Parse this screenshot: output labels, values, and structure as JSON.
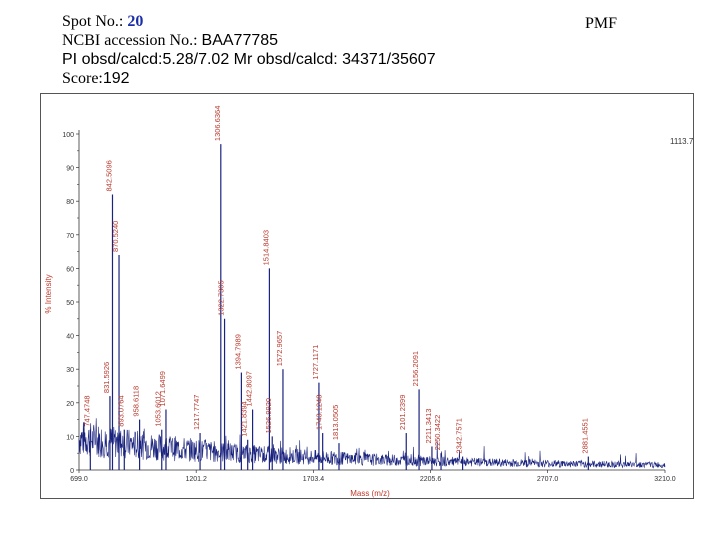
{
  "header": {
    "spot_label": "Spot No.: ",
    "spot_value": "20",
    "ncbi_label": "NCBI accession No.: ",
    "ncbi_value": "BAA77785",
    "pi_line": "PI obsd/calcd:5.28/7.02   Mr obsd/calcd: 34371/35607",
    "score_label": "Score:",
    "score_value": "192",
    "pmf": "PMF"
  },
  "chart_data": {
    "type": "line",
    "title": "",
    "xlabel": "Mass (m/z)",
    "ylabel": "% Intensity",
    "xlim": [
      699.0,
      3210.0
    ],
    "ylim": [
      0,
      100
    ],
    "x_ticks": [
      "699.0",
      "1201.2",
      "1703.4",
      "2205.6",
      "2707.0",
      "3210.0"
    ],
    "y_ticks": [
      "0",
      "10",
      "20",
      "30",
      "40",
      "50",
      "60",
      "70",
      "80",
      "90",
      "100"
    ],
    "max_intensity_label": "1113.7",
    "colors": {
      "trace": "#1a237e",
      "peak_label": "#b83a2e",
      "axis_title": "#c0392b"
    },
    "peaks": [
      {
        "mz": 747.4748,
        "intensity": 12,
        "label": "747.4748"
      },
      {
        "mz": 831.5926,
        "intensity": 22,
        "label": "831.5926"
      },
      {
        "mz": 842.5096,
        "intensity": 82,
        "label": "842.5096"
      },
      {
        "mz": 870.524,
        "intensity": 64,
        "label": "870.5240"
      },
      {
        "mz": 893.0764,
        "intensity": 12,
        "label": "893.0764"
      },
      {
        "mz": 958.6118,
        "intensity": 15,
        "label": "958.6118"
      },
      {
        "mz": 1053.6012,
        "intensity": 12,
        "label": "1053.6012"
      },
      {
        "mz": 1071.6499,
        "intensity": 18,
        "label": "1071.6499"
      },
      {
        "mz": 1217.7747,
        "intensity": 11,
        "label": "1217.7747"
      },
      {
        "mz": 1306.6364,
        "intensity": 97,
        "label": "1306.6364"
      },
      {
        "mz": 1322.7305,
        "intensity": 45,
        "label": "1322.7305"
      },
      {
        "mz": 1394.7989,
        "intensity": 29,
        "label": "1394.7989"
      },
      {
        "mz": 1421.8394,
        "intensity": 9,
        "label": "1421.8394"
      },
      {
        "mz": 1442.8097,
        "intensity": 18,
        "label": "1442.8097"
      },
      {
        "mz": 1514.8403,
        "intensity": 60,
        "label": "1514.8403"
      },
      {
        "mz": 1526.992,
        "intensity": 10,
        "label": "1526.9920"
      },
      {
        "mz": 1572.9657,
        "intensity": 30,
        "label": "1572.9657"
      },
      {
        "mz": 1727.1171,
        "intensity": 26,
        "label": "1727.1171"
      },
      {
        "mz": 1743.1248,
        "intensity": 11,
        "label": "1743.1248"
      },
      {
        "mz": 1813.0505,
        "intensity": 8,
        "label": "1813.0505"
      },
      {
        "mz": 2101.2399,
        "intensity": 11,
        "label": "2101.2399"
      },
      {
        "mz": 2156.2091,
        "intensity": 24,
        "label": "2156.2091"
      },
      {
        "mz": 2211.3413,
        "intensity": 7,
        "label": "2211.3413"
      },
      {
        "mz": 2250.3422,
        "intensity": 5,
        "label": "2250.3422"
      },
      {
        "mz": 2342.7571,
        "intensity": 4,
        "label": "2342.7571"
      },
      {
        "mz": 2881.4551,
        "intensity": 4,
        "label": "2881.4551"
      }
    ]
  }
}
